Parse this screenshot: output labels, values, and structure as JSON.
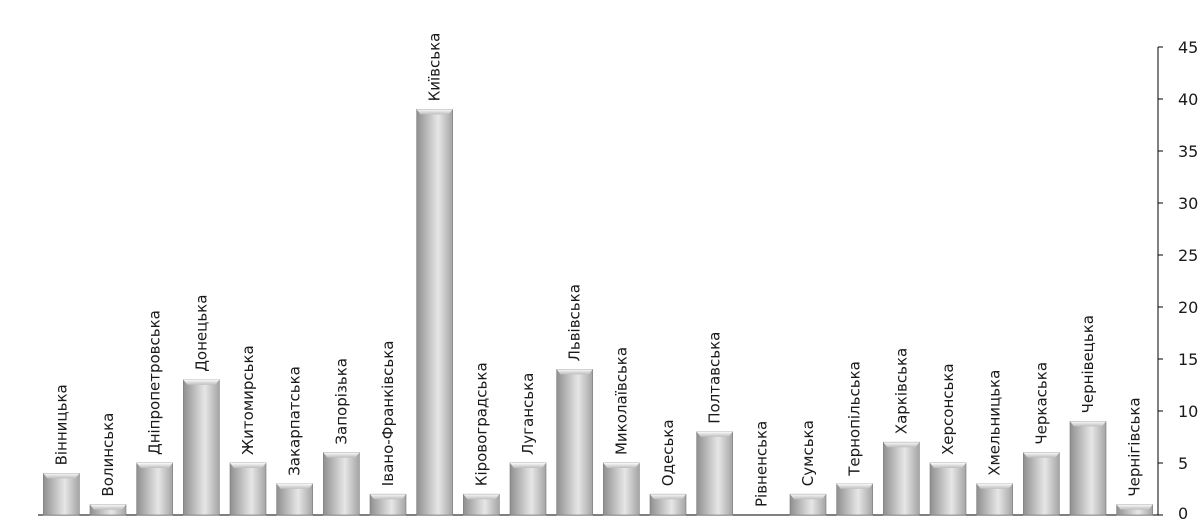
{
  "chart_data": {
    "type": "bar",
    "title": "",
    "xlabel": "",
    "ylabel": "",
    "categories": [
      "Вінницька",
      "Волинська",
      "Дніпропетровська",
      "Донецька",
      "Житомирська",
      "Закарпатська",
      "Запорізька",
      "Івано-Франківська",
      "Київська",
      "Кіровоградська",
      "Луганська",
      "Львівська",
      "Миколаївська",
      "Одеська",
      "Полтавська",
      "Рівненська",
      "Сумська",
      "Тернопільська",
      "Харківська",
      "Херсонська",
      "Хмельницька",
      "Черкаська",
      "Чернівецька",
      "Чернігівська"
    ],
    "values": [
      4,
      1,
      5,
      13,
      5,
      3,
      6,
      2,
      39,
      2,
      5,
      14,
      5,
      2,
      8,
      0,
      2,
      3,
      7,
      5,
      3,
      6,
      9,
      1
    ],
    "ylim": [
      0,
      45
    ],
    "yticks": [
      "0",
      "5",
      "10",
      "15",
      "20",
      "25",
      "30",
      "35",
      "40",
      "45"
    ],
    "y_axis_position": "right",
    "grid": false,
    "legend": "none",
    "colors": {
      "bar_dark": "#8c8c8c",
      "bar_mid": "#c8c8c8",
      "bar_light": "#e4e4e4",
      "bar_top": "#f2f2f2",
      "axis": "#000000"
    }
  }
}
